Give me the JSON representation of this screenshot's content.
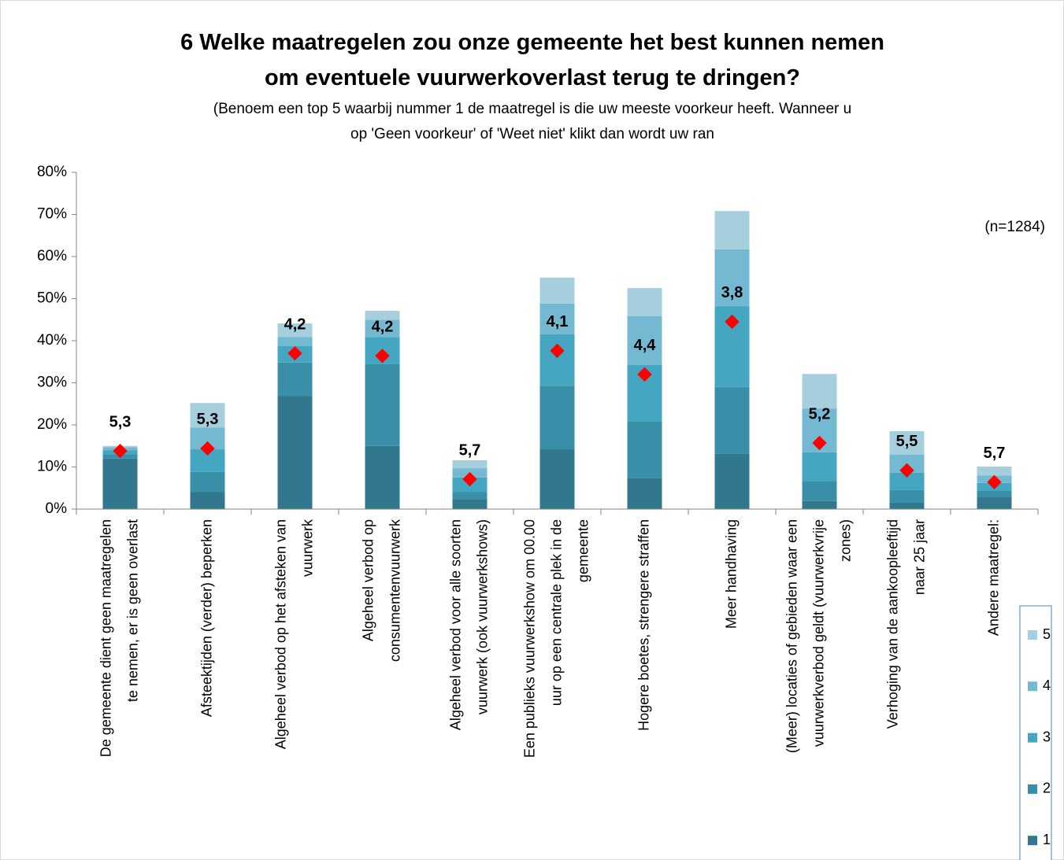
{
  "chart_data": {
    "type": "stacked-bar",
    "title": "6 Welke maatregelen zou onze gemeente het best kunnen nemen om eventuele vuurwerkoverlast terug te dringen?",
    "subtitle": "(Benoem een top 5 waarbij nummer 1 de maatregel is die uw meeste voorkeur heeft. Wanneer u op 'Geen voorkeur' of 'Weet niet' klikt dan wordt uw ran",
    "annotation": "(n=1284)",
    "categories": [
      "De gemeente dient geen maatregelen te nemen, er is geen overlast",
      "Afsteektijden (verder) beperken",
      "Algeheel verbod op het afsteken van vuurwerk",
      "Algeheel verbod op consumentenvuurwerk",
      "Algeheel verbod voor alle soorten vuurwerk (ook vuurwerkshows)",
      "Een publieks vuurwerkshow om 00.00 uur op een centrale plek in de gemeente",
      "Hogere boetes, strengere straffen",
      "Meer handhaving",
      "(Meer) locaties of gebieden waar een vuurwerkverbod geldt (vuurwerkvrije zones)",
      "Verhoging van de aankoopleeftijd naar 25 jaar",
      "Andere maatregel:"
    ],
    "series": [
      {
        "name": "1",
        "color": "#31788e",
        "values": [
          12.0,
          4.1,
          26.9,
          15.0,
          2.4,
          14.2,
          7.3,
          13.1,
          1.9,
          1.5,
          2.8
        ]
      },
      {
        "name": "2",
        "color": "#3a8fa8",
        "values": [
          1.0,
          4.7,
          7.9,
          19.4,
          1.7,
          15.1,
          13.6,
          15.9,
          4.8,
          3.0,
          1.5
        ]
      },
      {
        "name": "3",
        "color": "#45a6c2",
        "values": [
          1.0,
          5.4,
          3.9,
          6.5,
          3.4,
          12.2,
          13.3,
          19.2,
          6.8,
          4.1,
          1.9
        ]
      },
      {
        "name": "4",
        "color": "#73b9d2",
        "values": [
          0.7,
          5.2,
          2.2,
          4.1,
          2.2,
          7.3,
          11.6,
          13.5,
          10.4,
          4.3,
          1.8
        ]
      },
      {
        "name": "5",
        "color": "#a6cfde",
        "values": [
          0.3,
          5.8,
          3.2,
          2.1,
          1.9,
          6.2,
          6.7,
          9.1,
          8.2,
          5.6,
          2.1
        ]
      }
    ],
    "markers": {
      "color": "#ff0000",
      "values": [
        13.8,
        14.4,
        37.0,
        36.4,
        7.1,
        37.6,
        32.0,
        44.5,
        15.7,
        9.2,
        6.4
      ]
    },
    "scores": {
      "values": [
        5.3,
        5.3,
        4.2,
        4.2,
        5.7,
        4.1,
        4.4,
        3.8,
        5.2,
        5.5,
        5.7
      ],
      "value_labels": [
        "5,3",
        "5,3",
        "4,2",
        "4,2",
        "5,7",
        "4,1",
        "4,4",
        "3,8",
        "5,2",
        "5,5",
        "5,7"
      ]
    },
    "ylim": [
      0,
      80
    ],
    "yticks": [
      {
        "value": 0,
        "label": "0%"
      },
      {
        "value": 10,
        "label": "10%"
      },
      {
        "value": 20,
        "label": "20%"
      },
      {
        "value": 30,
        "label": "30%"
      },
      {
        "value": 40,
        "label": "40%"
      },
      {
        "value": 50,
        "label": "50%"
      },
      {
        "value": 60,
        "label": "60%"
      },
      {
        "value": 70,
        "label": "70%"
      },
      {
        "value": 80,
        "label": "80%"
      }
    ],
    "grid": false,
    "legend": "right"
  }
}
